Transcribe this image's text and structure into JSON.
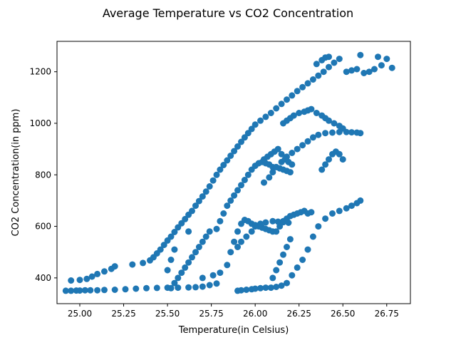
{
  "chart_data": {
    "type": "scatter",
    "title": "Average Temperature vs CO2 Concentration",
    "xlabel": "Temperature(in Celsius)",
    "ylabel": "CO2 Concentration(in ppm)",
    "xlim": [
      24.87,
      26.885
    ],
    "ylim": [
      300,
      1318
    ],
    "xticks": [
      25.0,
      25.25,
      25.5,
      25.75,
      26.0,
      26.25,
      26.5,
      26.75
    ],
    "xtick_labels": [
      "25.00",
      "25.25",
      "25.50",
      "25.75",
      "26.00",
      "26.25",
      "26.50",
      "26.75"
    ],
    "yticks": [
      400,
      600,
      800,
      1000,
      1200
    ],
    "ytick_labels": [
      "400",
      "600",
      "800",
      "1000",
      "1200"
    ],
    "grid": false,
    "series": [
      {
        "color": "#1f77b4",
        "x": [
          24.92,
          24.95,
          24.98,
          25.0,
          25.03,
          25.06,
          25.1,
          25.14,
          25.2,
          25.26,
          25.32,
          25.38,
          25.44,
          25.5,
          25.56,
          25.62,
          25.66,
          25.7,
          25.74,
          25.78,
          24.95,
          25.0,
          25.04,
          25.07,
          25.1,
          25.14,
          25.18,
          25.2,
          25.3,
          25.36,
          25.4,
          25.42,
          25.44,
          25.46,
          25.48,
          25.5,
          25.52,
          25.54,
          25.56,
          25.58,
          25.6,
          25.62,
          25.64,
          25.66,
          25.68,
          25.7,
          25.72,
          25.74,
          25.76,
          25.78,
          25.8,
          25.82,
          25.84,
          25.86,
          25.88,
          25.9,
          25.92,
          25.94,
          25.96,
          25.98,
          26.0,
          26.03,
          26.06,
          26.09,
          26.12,
          26.15,
          26.18,
          26.21,
          26.24,
          26.27,
          26.3,
          26.33,
          26.36,
          26.39,
          26.42,
          26.45,
          26.48,
          26.35,
          26.38,
          26.4,
          26.42,
          26.52,
          26.55,
          26.58,
          26.6,
          26.62,
          26.65,
          26.68,
          26.7,
          26.72,
          26.75,
          26.78,
          25.52,
          25.54,
          25.56,
          25.58,
          25.6,
          25.62,
          25.64,
          25.66,
          25.68,
          25.7,
          25.72,
          25.74,
          25.5,
          25.52,
          25.54,
          25.62,
          25.7,
          25.76,
          25.8,
          25.84,
          25.86,
          25.88,
          25.9,
          25.92,
          25.94,
          25.96,
          25.98,
          26.0,
          26.02,
          26.04,
          26.06,
          26.08,
          26.1,
          26.12,
          26.14,
          26.16,
          26.18,
          26.2,
          26.22,
          26.24,
          26.26,
          26.28,
          26.3,
          26.32,
          25.9,
          25.92,
          25.95,
          25.98,
          26.0,
          26.03,
          26.06,
          26.1,
          26.13,
          26.16,
          26.19,
          25.78,
          25.8,
          25.82,
          25.84,
          25.86,
          25.88,
          25.9,
          25.92,
          25.94,
          25.96,
          25.98,
          26.0,
          26.02,
          26.04,
          26.06,
          26.08,
          26.1,
          26.12,
          26.14,
          26.16,
          26.18,
          26.2,
          26.05,
          26.08,
          26.1,
          26.12,
          26.15,
          26.18,
          26.21,
          26.24,
          26.27,
          26.3,
          26.33,
          26.36,
          26.4,
          26.44,
          26.48,
          26.52,
          26.55,
          26.58,
          26.6,
          26.16,
          26.18,
          26.2,
          26.22,
          26.25,
          26.28,
          26.3,
          26.32,
          26.35,
          26.38,
          26.4,
          26.42,
          26.45,
          26.48,
          26.5,
          26.38,
          26.4,
          26.42,
          26.44,
          26.46,
          26.48,
          26.5,
          26.1,
          26.12,
          26.14,
          26.16,
          26.18,
          26.2,
          25.9,
          25.92,
          25.95,
          25.98,
          26.0,
          26.03,
          26.06,
          26.09,
          26.12,
          26.15,
          26.18,
          26.21,
          26.24,
          26.27,
          26.3,
          26.33,
          26.36,
          26.4,
          26.44,
          26.48,
          26.52,
          26.55,
          26.58,
          26.6,
          26.05,
          26.07,
          26.09,
          26.11,
          26.13,
          26.15,
          26.17,
          26.19,
          26.21
        ],
        "y": [
          350,
          350,
          351,
          351,
          352,
          352,
          352,
          353,
          354,
          356,
          358,
          360,
          361,
          362,
          362,
          363,
          364,
          366,
          372,
          378,
          390,
          392,
          396,
          405,
          415,
          425,
          435,
          445,
          452,
          458,
          468,
          480,
          495,
          510,
          528,
          545,
          560,
          578,
          596,
          612,
          628,
          645,
          660,
          680,
          698,
          716,
          735,
          755,
          778,
          800,
          820,
          838,
          856,
          874,
          892,
          910,
          928,
          945,
          962,
          978,
          995,
          1010,
          1025,
          1040,
          1058,
          1075,
          1092,
          1108,
          1125,
          1140,
          1155,
          1170,
          1185,
          1200,
          1218,
          1235,
          1250,
          1230,
          1245,
          1255,
          1258,
          1200,
          1205,
          1210,
          1265,
          1195,
          1200,
          1210,
          1258,
          1225,
          1250,
          1215,
          360,
          380,
          400,
          420,
          440,
          460,
          480,
          500,
          520,
          540,
          560,
          580,
          430,
          470,
          510,
          580,
          400,
          410,
          420,
          450,
          500,
          540,
          580,
          610,
          625,
          620,
          610,
          605,
          600,
          595,
          590,
          585,
          580,
          580,
          600,
          620,
          630,
          640,
          645,
          650,
          655,
          660,
          650,
          655,
          520,
          540,
          560,
          580,
          600,
          610,
          615,
          620,
          618,
          616,
          614,
          590,
          620,
          650,
          680,
          700,
          720,
          740,
          760,
          780,
          800,
          820,
          835,
          845,
          850,
          845,
          840,
          830,
          830,
          825,
          820,
          815,
          810,
          770,
          790,
          810,
          830,
          850,
          870,
          885,
          900,
          915,
          930,
          945,
          955,
          962,
          964,
          966,
          966,
          965,
          964,
          962,
          1000,
          1010,
          1020,
          1030,
          1040,
          1045,
          1050,
          1055,
          1040,
          1030,
          1020,
          1010,
          1000,
          990,
          980,
          820,
          840,
          860,
          880,
          890,
          880,
          860,
          400,
          430,
          460,
          490,
          520,
          550,
          350,
          352,
          354,
          356,
          358,
          360,
          362,
          362,
          365,
          370,
          380,
          410,
          440,
          470,
          510,
          560,
          600,
          630,
          650,
          660,
          670,
          680,
          690,
          700,
          860,
          870,
          880,
          890,
          900,
          880,
          860,
          850,
          840
        ]
      }
    ]
  }
}
